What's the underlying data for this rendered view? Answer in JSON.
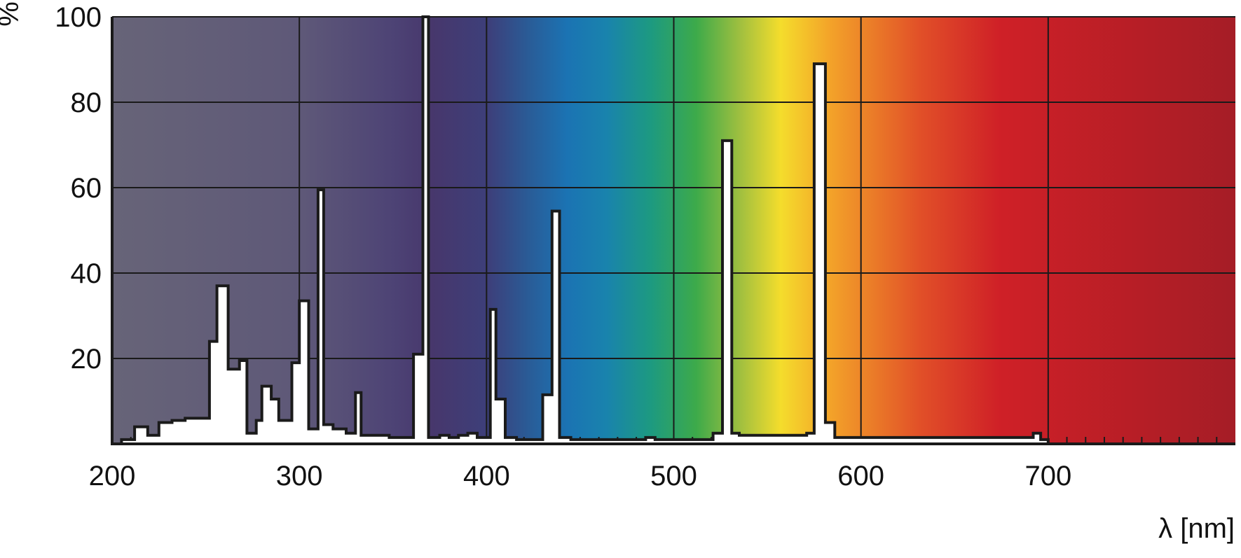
{
  "chart_data": {
    "type": "area",
    "title": "",
    "xlabel": "λ [nm]",
    "ylabel": "%",
    "xlim": [
      200,
      800
    ],
    "ylim": [
      0,
      100
    ],
    "x_ticks": [
      200,
      300,
      400,
      500,
      600,
      700
    ],
    "y_ticks": [
      20,
      40,
      60,
      80,
      100
    ],
    "grid": true,
    "background": "visible spectrum color gradient (violet to red)",
    "series": [
      {
        "values": [
          [
            200,
            0
          ],
          [
            205,
            0
          ],
          [
            205,
            1
          ],
          [
            212,
            1
          ],
          [
            212,
            4
          ],
          [
            219,
            4
          ],
          [
            219,
            2
          ],
          [
            225,
            2
          ],
          [
            225,
            5
          ],
          [
            232,
            5
          ],
          [
            232,
            5.5
          ],
          [
            239,
            5.5
          ],
          [
            239,
            6
          ],
          [
            252,
            6
          ],
          [
            252,
            24
          ],
          [
            256,
            24
          ],
          [
            256,
            37
          ],
          [
            262,
            37
          ],
          [
            262,
            17.5
          ],
          [
            268,
            17.5
          ],
          [
            268,
            19.5
          ],
          [
            272,
            19.5
          ],
          [
            272,
            2.5
          ],
          [
            277,
            2.5
          ],
          [
            277,
            5.5
          ],
          [
            280,
            5.5
          ],
          [
            280,
            13.5
          ],
          [
            285,
            13.5
          ],
          [
            285,
            10.5
          ],
          [
            289,
            10.5
          ],
          [
            289,
            5.5
          ],
          [
            296,
            5.5
          ],
          [
            296,
            19
          ],
          [
            300,
            19
          ],
          [
            300,
            33.5
          ],
          [
            305,
            33.5
          ],
          [
            305,
            3.5
          ],
          [
            310,
            3.5
          ],
          [
            310,
            59.5
          ],
          [
            313,
            59.5
          ],
          [
            313,
            4.5
          ],
          [
            318,
            4.5
          ],
          [
            318,
            3.5
          ],
          [
            325,
            3.5
          ],
          [
            325,
            2.5
          ],
          [
            330,
            2.5
          ],
          [
            330,
            12
          ],
          [
            333,
            12
          ],
          [
            333,
            2
          ],
          [
            348,
            2
          ],
          [
            348,
            1.5
          ],
          [
            361,
            1.5
          ],
          [
            361,
            21
          ],
          [
            366,
            21
          ],
          [
            366,
            100
          ],
          [
            369,
            100
          ],
          [
            369,
            1.5
          ],
          [
            375,
            1.5
          ],
          [
            375,
            2
          ],
          [
            380,
            2
          ],
          [
            380,
            1.5
          ],
          [
            385,
            1.5
          ],
          [
            385,
            2
          ],
          [
            390,
            2
          ],
          [
            390,
            2.5
          ],
          [
            395,
            2.5
          ],
          [
            395,
            1.5
          ],
          [
            402,
            1.5
          ],
          [
            402,
            31.5
          ],
          [
            405,
            31.5
          ],
          [
            405,
            10.5
          ],
          [
            410,
            10.5
          ],
          [
            410,
            1.5
          ],
          [
            416,
            1.5
          ],
          [
            416,
            1
          ],
          [
            430,
            1
          ],
          [
            430,
            11.5
          ],
          [
            435,
            11.5
          ],
          [
            435,
            54.5
          ],
          [
            439,
            54.5
          ],
          [
            439,
            1.5
          ],
          [
            445,
            1.5
          ],
          [
            445,
            1
          ],
          [
            485,
            1
          ],
          [
            485,
            1.5
          ],
          [
            490,
            1.5
          ],
          [
            490,
            1
          ],
          [
            521,
            1
          ],
          [
            521,
            2.5
          ],
          [
            526,
            2.5
          ],
          [
            526,
            71
          ],
          [
            531,
            71
          ],
          [
            531,
            2.5
          ],
          [
            535,
            2.5
          ],
          [
            535,
            2
          ],
          [
            571,
            2
          ],
          [
            571,
            2.5
          ],
          [
            575,
            2.5
          ],
          [
            575,
            89
          ],
          [
            581,
            89
          ],
          [
            581,
            5
          ],
          [
            586,
            5
          ],
          [
            586,
            1.5
          ],
          [
            692,
            1.5
          ],
          [
            692,
            2.5
          ],
          [
            696,
            2.5
          ],
          [
            696,
            1
          ],
          [
            700,
            1
          ],
          [
            700,
            0
          ]
        ]
      }
    ]
  }
}
